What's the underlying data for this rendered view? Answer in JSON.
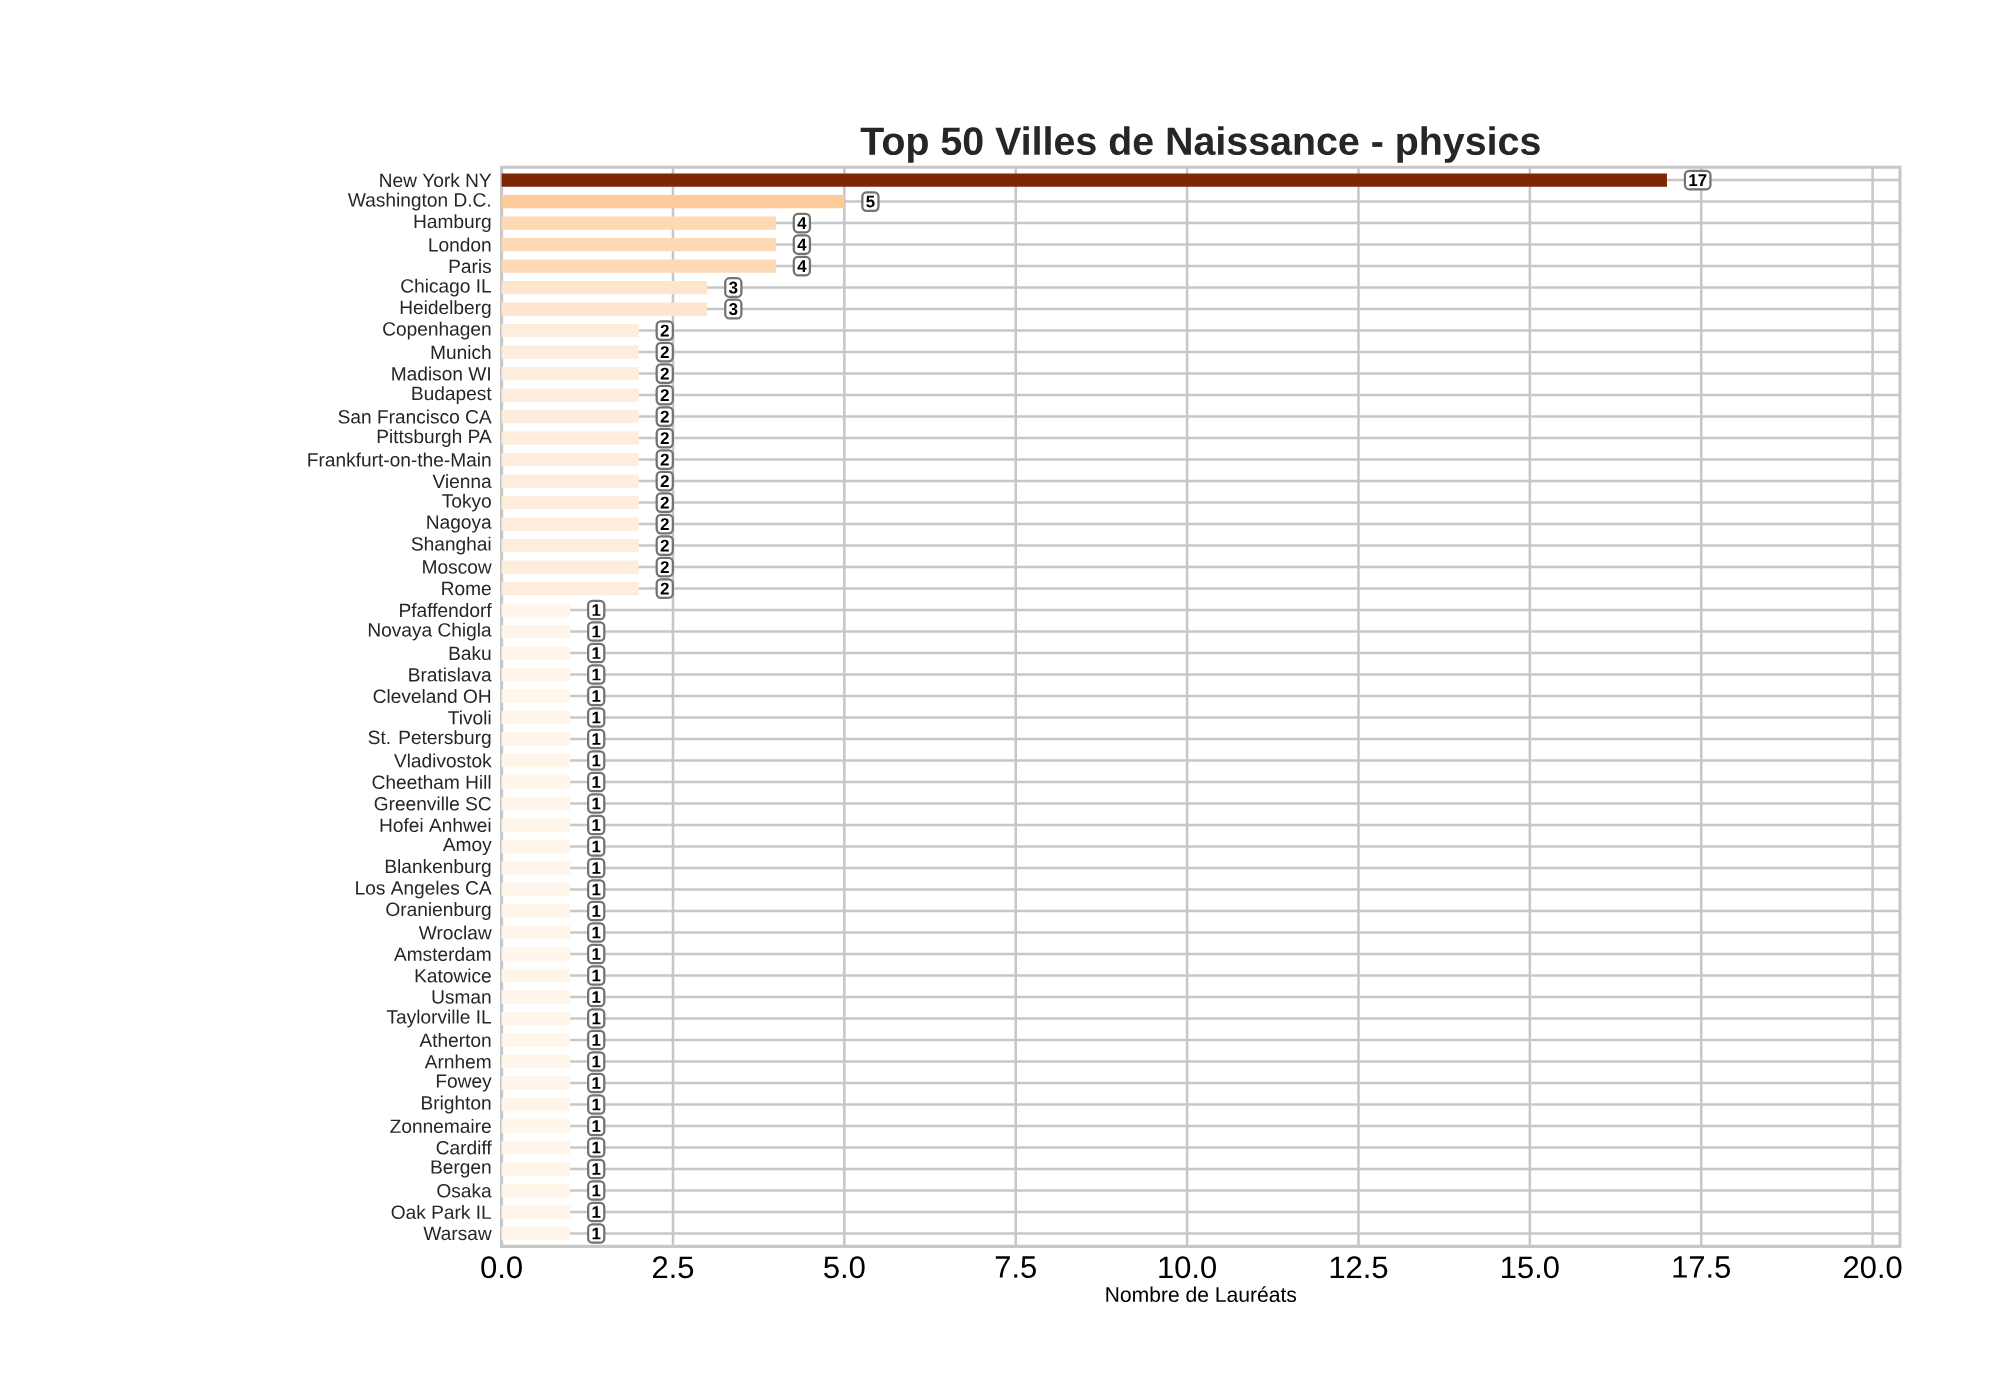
{
  "chart_data": {
    "type": "bar",
    "orientation": "horizontal",
    "title": "Top 50 Villes de Naissance - physics",
    "xlabel": "Nombre de Lauréats",
    "categories": [
      "New York NY",
      "Washington D.C.",
      "Hamburg",
      "London",
      "Paris",
      "Chicago IL",
      "Heidelberg",
      "Copenhagen",
      "Munich",
      "Madison WI",
      "Budapest",
      "San Francisco CA",
      "Pittsburgh PA",
      "Frankfurt-on-the-Main",
      "Vienna",
      "Tokyo",
      "Nagoya",
      "Shanghai",
      "Moscow",
      "Rome",
      "Pfaffendorf",
      "Novaya Chigla",
      "Baku",
      "Bratislava",
      "Cleveland OH",
      "Tivoli",
      "St. Petersburg",
      "Vladivostok",
      "Cheetham Hill",
      "Greenville SC",
      "Hofei Anhwei",
      "Amoy",
      "Blankenburg",
      "Los Angeles CA",
      "Oranienburg",
      "Wroclaw",
      "Amsterdam",
      "Katowice",
      "Usman",
      "Taylorville IL",
      "Atherton",
      "Arnhem",
      "Fowey",
      "Brighton",
      "Zonnemaire",
      "Cardiff",
      "Bergen",
      "Osaka",
      "Oak Park IL",
      "Warsaw"
    ],
    "values": [
      17,
      5,
      4,
      4,
      4,
      3,
      3,
      2,
      2,
      2,
      2,
      2,
      2,
      2,
      2,
      2,
      2,
      2,
      2,
      2,
      1,
      1,
      1,
      1,
      1,
      1,
      1,
      1,
      1,
      1,
      1,
      1,
      1,
      1,
      1,
      1,
      1,
      1,
      1,
      1,
      1,
      1,
      1,
      1,
      1,
      1,
      1,
      1,
      1,
      1
    ],
    "colors": [
      "#7f2704",
      "#fdca99",
      "#fdd9b4",
      "#fdd9b4",
      "#fdd9b4",
      "#fee6ce",
      "#fee6ce",
      "#feeddc",
      "#feeddc",
      "#feeddc",
      "#feeddc",
      "#feeddc",
      "#feeddc",
      "#feeddc",
      "#feeddc",
      "#feeddc",
      "#feeddc",
      "#feeddc",
      "#feeddc",
      "#feeddc",
      "#fff5eb",
      "#fff5eb",
      "#fff5eb",
      "#fff5eb",
      "#fff5eb",
      "#fff5eb",
      "#fff5eb",
      "#fff5eb",
      "#fff5eb",
      "#fff5eb",
      "#fff5eb",
      "#fff5eb",
      "#fff5eb",
      "#fff5eb",
      "#fff5eb",
      "#fff5eb",
      "#fff5eb",
      "#fff5eb",
      "#fff5eb",
      "#fff5eb",
      "#fff5eb",
      "#fff5eb",
      "#fff5eb",
      "#fff5eb",
      "#fff5eb",
      "#fff5eb",
      "#fff5eb",
      "#fff5eb",
      "#fff5eb",
      "#fff5eb"
    ],
    "xlim": [
      0,
      20.4
    ],
    "xticks": [
      {
        "value": 0,
        "label": "0.0"
      },
      {
        "value": 2.5,
        "label": "2.5"
      },
      {
        "value": 5,
        "label": "5.0"
      },
      {
        "value": 7.5,
        "label": "7.5"
      },
      {
        "value": 10,
        "label": "10.0"
      },
      {
        "value": 12.5,
        "label": "12.5"
      },
      {
        "value": 15,
        "label": "15.0"
      },
      {
        "value": 17.5,
        "label": "17.5"
      },
      {
        "value": 20,
        "label": "20.0"
      }
    ],
    "grid": true,
    "data_labels": true
  }
}
